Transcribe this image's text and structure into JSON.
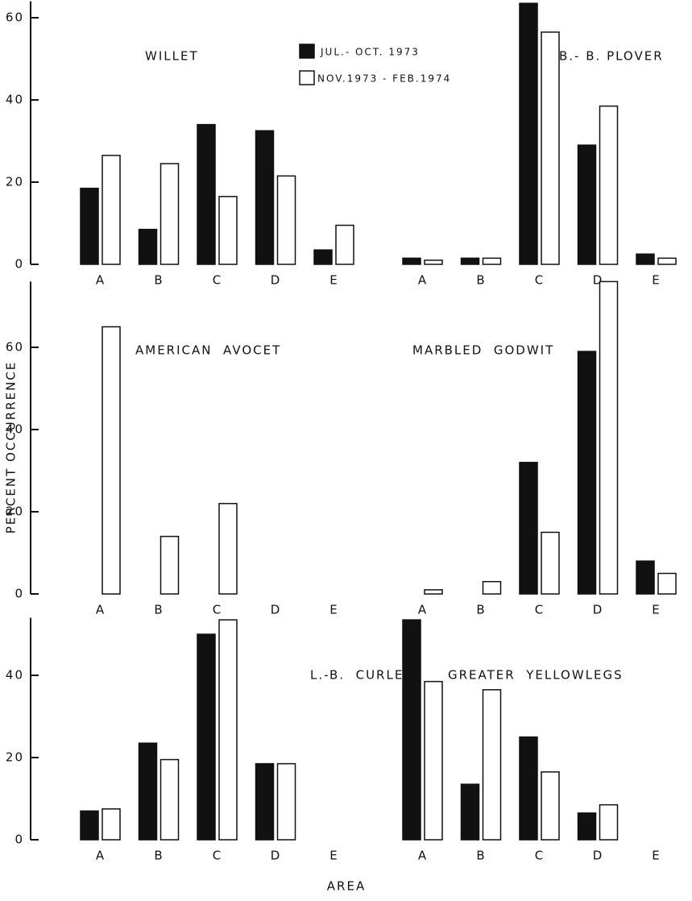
{
  "ylabel": "PERCENT OCCURRENCE",
  "xlabel": "AREA",
  "chart_data": [
    {
      "type": "bar",
      "title": "WILLET",
      "categories": [
        "A",
        "B",
        "C",
        "D",
        "E"
      ],
      "series": [
        {
          "name": "JUL.- OCT. 1973",
          "color": "#111111",
          "values": [
            18.5,
            8.5,
            34,
            32.5,
            3.5
          ]
        },
        {
          "name": "NOV.1973 - FEB.1974",
          "color": "#ffffff",
          "values": [
            26.5,
            24.5,
            16.5,
            21.5,
            9.5
          ]
        }
      ],
      "ylim": [
        0,
        64
      ],
      "yticks": [
        0,
        20,
        40,
        60
      ]
    },
    {
      "type": "bar",
      "title": "B.- B. PLOVER",
      "categories": [
        "A",
        "B",
        "C",
        "D",
        "E"
      ],
      "series": [
        {
          "name": "JUL.- OCT. 1973",
          "color": "#111111",
          "values": [
            1.5,
            1.5,
            63.5,
            29,
            2.5
          ]
        },
        {
          "name": "NOV.1973 - FEB.1974",
          "color": "#ffffff",
          "values": [
            1,
            1.5,
            56.5,
            38.5,
            1.5
          ]
        }
      ],
      "ylim": [
        0,
        64
      ]
    },
    {
      "type": "bar",
      "title": "AMERICAN  AVOCET",
      "categories": [
        "A",
        "B",
        "C",
        "D",
        "E"
      ],
      "series": [
        {
          "name": "JUL.- OCT. 1973",
          "color": "#111111",
          "values": [
            0,
            0,
            0,
            0,
            0
          ]
        },
        {
          "name": "NOV.1973 - FEB.1974",
          "color": "#ffffff",
          "values": [
            65,
            14,
            22,
            0,
            0
          ]
        }
      ],
      "ylim": [
        0,
        76
      ],
      "yticks": [
        0,
        20,
        40,
        60
      ]
    },
    {
      "type": "bar",
      "title": "MARBLED  GODWIT",
      "categories": [
        "A",
        "B",
        "C",
        "D",
        "E"
      ],
      "series": [
        {
          "name": "JUL.- OCT. 1973",
          "color": "#111111",
          "values": [
            0,
            0,
            32,
            59,
            8
          ]
        },
        {
          "name": "NOV.1973 - FEB.1974",
          "color": "#ffffff",
          "values": [
            1,
            3,
            15,
            76,
            5
          ]
        }
      ],
      "ylim": [
        0,
        76
      ]
    },
    {
      "type": "bar",
      "title": "L.-B.  CURLEW",
      "categories": [
        "A",
        "B",
        "C",
        "D",
        "E"
      ],
      "series": [
        {
          "name": "JUL.- OCT. 1973",
          "color": "#111111",
          "values": [
            7,
            23.5,
            50,
            18.5,
            0
          ]
        },
        {
          "name": "NOV.1973 - FEB.1974",
          "color": "#ffffff",
          "values": [
            7.5,
            19.5,
            53.5,
            18.5,
            0
          ]
        }
      ],
      "ylim": [
        0,
        54
      ],
      "yticks": [
        0,
        20,
        40
      ]
    },
    {
      "type": "bar",
      "title": "GREATER  YELLOWLEGS",
      "categories": [
        "A",
        "B",
        "C",
        "D",
        "E"
      ],
      "series": [
        {
          "name": "JUL.- OCT. 1973",
          "color": "#111111",
          "values": [
            53.5,
            13.5,
            25,
            6.5,
            0
          ]
        },
        {
          "name": "NOV.1973 - FEB.1974",
          "color": "#ffffff",
          "values": [
            38.5,
            36.5,
            16.5,
            8.5,
            0
          ]
        }
      ],
      "ylim": [
        0,
        54
      ]
    }
  ]
}
